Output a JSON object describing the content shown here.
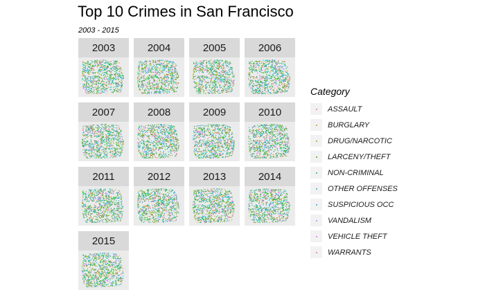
{
  "title": "Top 10 Crimes in San Francisco",
  "subtitle": "2003 - 2015",
  "legend": {
    "title": "Category",
    "items": [
      {
        "label": "ASSAULT",
        "color": "#F8766D"
      },
      {
        "label": "BURGLARY",
        "color": "#D89000"
      },
      {
        "label": "DRUG/NARCOTIC",
        "color": "#A3A500"
      },
      {
        "label": "LARCENY/THEFT",
        "color": "#39B600"
      },
      {
        "label": "NON-CRIMINAL",
        "color": "#00BF7D"
      },
      {
        "label": "OTHER OFFENSES",
        "color": "#00BFC4"
      },
      {
        "label": "SUSPICIOUS OCC",
        "color": "#00B0F6"
      },
      {
        "label": "VANDALISM",
        "color": "#9590FF"
      },
      {
        "label": "VEHICLE THEFT",
        "color": "#E76BF3"
      },
      {
        "label": "WARRANTS",
        "color": "#FF62BC"
      }
    ]
  },
  "panels": [
    {
      "label": "2003"
    },
    {
      "label": "2004"
    },
    {
      "label": "2005"
    },
    {
      "label": "2006"
    },
    {
      "label": "2007"
    },
    {
      "label": "2008"
    },
    {
      "label": "2009"
    },
    {
      "label": "2010"
    },
    {
      "label": "2011"
    },
    {
      "label": "2012"
    },
    {
      "label": "2013"
    },
    {
      "label": "2014"
    },
    {
      "label": "2015"
    }
  ]
}
